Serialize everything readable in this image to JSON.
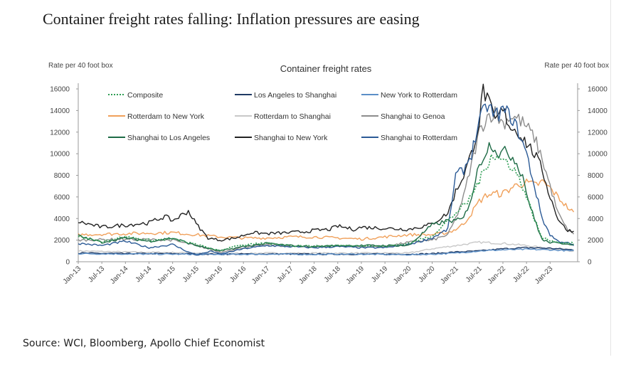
{
  "headline": "Container freight rates falling: Inflation pressures are easing",
  "source": "Source: WCI, Bloomberg, Apollo Chief Economist",
  "chart_data": {
    "type": "line",
    "title": "Container freight rates",
    "ylabel_left": "Rate per 40 foot box",
    "ylabel_right": "Rate per 40 foot box",
    "ylim": [
      0,
      16000
    ],
    "yticks": [
      0,
      2000,
      4000,
      6000,
      8000,
      10000,
      12000,
      14000,
      16000
    ],
    "ytick_labels": [
      "0",
      "2000",
      "4000",
      "6000",
      "8000",
      "10000",
      "12000",
      "14000",
      "16000"
    ],
    "xlim": [
      0,
      127
    ],
    "x_tick_labels": [
      "Jan-13",
      "Jul-13",
      "Jan-14",
      "Jul-14",
      "Jan-15",
      "Jul-15",
      "Jan-16",
      "Jul-16",
      "Jan-17",
      "Jul-17",
      "Jan-18",
      "Jul-18",
      "Jan-19",
      "Jul-19",
      "Jan-20",
      "Jul-20",
      "Jan-21",
      "Jul-21",
      "Jan-22",
      "Jul-22",
      "Jan-23"
    ],
    "x_tick_months": [
      0,
      6,
      12,
      18,
      24,
      30,
      36,
      42,
      48,
      54,
      60,
      66,
      72,
      78,
      84,
      90,
      96,
      102,
      108,
      114,
      120
    ],
    "x_month_index_note": "x values are months since Jan-13",
    "series": [
      {
        "name": "Composite",
        "color": "#2e9e54",
        "dash": "2,2",
        "points": [
          [
            0,
            2300
          ],
          [
            6,
            1900
          ],
          [
            12,
            2300
          ],
          [
            18,
            2000
          ],
          [
            24,
            2100
          ],
          [
            30,
            1600
          ],
          [
            36,
            1000
          ],
          [
            40,
            1500
          ],
          [
            48,
            1700
          ],
          [
            54,
            1500
          ],
          [
            60,
            1450
          ],
          [
            66,
            1500
          ],
          [
            72,
            1500
          ],
          [
            78,
            1400
          ],
          [
            84,
            1700
          ],
          [
            90,
            2400
          ],
          [
            96,
            4500
          ],
          [
            99,
            5500
          ],
          [
            102,
            7500
          ],
          [
            104,
            9000
          ],
          [
            105,
            10000
          ],
          [
            107,
            9500
          ],
          [
            109,
            9300
          ],
          [
            111,
            8500
          ],
          [
            113,
            7000
          ],
          [
            115,
            5000
          ],
          [
            117,
            3000
          ],
          [
            118,
            2200
          ],
          [
            120,
            2000
          ],
          [
            122,
            1800
          ],
          [
            124,
            1750
          ],
          [
            126,
            1700
          ]
        ]
      },
      {
        "name": "Los Angeles to Shanghai",
        "color": "#1f3a64",
        "dash": "",
        "points": [
          [
            0,
            800
          ],
          [
            12,
            750
          ],
          [
            24,
            750
          ],
          [
            36,
            700
          ],
          [
            48,
            720
          ],
          [
            60,
            700
          ],
          [
            72,
            700
          ],
          [
            84,
            700
          ],
          [
            90,
            750
          ],
          [
            96,
            900
          ],
          [
            102,
            1000
          ],
          [
            108,
            1200
          ],
          [
            114,
            1300
          ],
          [
            120,
            1250
          ],
          [
            126,
            1100
          ]
        ]
      },
      {
        "name": "New York to Rotterdam",
        "color": "#5b8fc7",
        "dash": "",
        "points": [
          [
            0,
            750
          ],
          [
            12,
            720
          ],
          [
            24,
            700
          ],
          [
            36,
            680
          ],
          [
            48,
            700
          ],
          [
            60,
            680
          ],
          [
            72,
            700
          ],
          [
            84,
            650
          ],
          [
            90,
            700
          ],
          [
            96,
            800
          ],
          [
            102,
            1000
          ],
          [
            108,
            1100
          ],
          [
            114,
            1150
          ],
          [
            120,
            1100
          ],
          [
            126,
            1000
          ]
        ]
      },
      {
        "name": "Rotterdam to New York",
        "color": "#f0a05a",
        "dash": "",
        "points": [
          [
            0,
            2500
          ],
          [
            12,
            2600
          ],
          [
            24,
            2700
          ],
          [
            30,
            2500
          ],
          [
            36,
            2300
          ],
          [
            42,
            2200
          ],
          [
            48,
            2200
          ],
          [
            54,
            2300
          ],
          [
            60,
            2300
          ],
          [
            66,
            2200
          ],
          [
            72,
            2100
          ],
          [
            78,
            2300
          ],
          [
            84,
            2500
          ],
          [
            90,
            2500
          ],
          [
            94,
            2700
          ],
          [
            96,
            3000
          ],
          [
            98,
            3500
          ],
          [
            100,
            4500
          ],
          [
            102,
            5600
          ],
          [
            104,
            6200
          ],
          [
            106,
            6300
          ],
          [
            108,
            6300
          ],
          [
            110,
            6800
          ],
          [
            112,
            7200
          ],
          [
            114,
            7300
          ],
          [
            116,
            7100
          ],
          [
            117,
            7200
          ],
          [
            118,
            7400
          ],
          [
            120,
            6800
          ],
          [
            122,
            6000
          ],
          [
            124,
            5200
          ],
          [
            126,
            4500
          ]
        ]
      },
      {
        "name": "Rotterdam to Shanghai",
        "color": "#c8c8c8",
        "dash": "",
        "points": [
          [
            0,
            1000
          ],
          [
            12,
            900
          ],
          [
            24,
            850
          ],
          [
            36,
            750
          ],
          [
            48,
            800
          ],
          [
            60,
            800
          ],
          [
            72,
            800
          ],
          [
            84,
            800
          ],
          [
            90,
            1200
          ],
          [
            96,
            1500
          ],
          [
            102,
            1800
          ],
          [
            108,
            1700
          ],
          [
            114,
            1500
          ],
          [
            120,
            1200
          ],
          [
            126,
            1000
          ]
        ]
      },
      {
        "name": "Shanghai to Genoa",
        "color": "#8c8c8c",
        "dash": "",
        "points": [
          [
            0,
            2000
          ],
          [
            12,
            2100
          ],
          [
            24,
            2000
          ],
          [
            30,
            1500
          ],
          [
            36,
            900
          ],
          [
            42,
            1300
          ],
          [
            48,
            1600
          ],
          [
            54,
            1400
          ],
          [
            60,
            1400
          ],
          [
            66,
            1500
          ],
          [
            72,
            1400
          ],
          [
            78,
            1400
          ],
          [
            84,
            1800
          ],
          [
            90,
            2000
          ],
          [
            94,
            2500
          ],
          [
            96,
            4000
          ],
          [
            98,
            6000
          ],
          [
            100,
            9000
          ],
          [
            102,
            12000
          ],
          [
            104,
            13500
          ],
          [
            106,
            13800
          ],
          [
            108,
            12800
          ],
          [
            110,
            13500
          ],
          [
            112,
            13200
          ],
          [
            114,
            12500
          ],
          [
            116,
            11500
          ],
          [
            118,
            9500
          ],
          [
            120,
            7000
          ],
          [
            122,
            4500
          ],
          [
            124,
            3200
          ],
          [
            126,
            2500
          ]
        ]
      },
      {
        "name": "Shanghai to Los Angeles",
        "color": "#1e6b46",
        "dash": "",
        "points": [
          [
            0,
            2400
          ],
          [
            6,
            1800
          ],
          [
            12,
            2200
          ],
          [
            18,
            1900
          ],
          [
            24,
            2200
          ],
          [
            30,
            1500
          ],
          [
            36,
            1000
          ],
          [
            42,
            1400
          ],
          [
            48,
            1700
          ],
          [
            54,
            1500
          ],
          [
            60,
            1400
          ],
          [
            66,
            1500
          ],
          [
            72,
            1500
          ],
          [
            78,
            1500
          ],
          [
            84,
            1500
          ],
          [
            90,
            3400
          ],
          [
            94,
            3800
          ],
          [
            96,
            3800
          ],
          [
            98,
            4000
          ],
          [
            100,
            6000
          ],
          [
            102,
            9000
          ],
          [
            104,
            10500
          ],
          [
            105,
            11000
          ],
          [
            107,
            10000
          ],
          [
            109,
            10200
          ],
          [
            111,
            9500
          ],
          [
            113,
            8000
          ],
          [
            115,
            5000
          ],
          [
            117,
            3000
          ],
          [
            118,
            2000
          ],
          [
            120,
            1800
          ],
          [
            122,
            1700
          ],
          [
            124,
            1700
          ],
          [
            126,
            1600
          ]
        ]
      },
      {
        "name": "Shanghai to New York",
        "color": "#222222",
        "dash": "",
        "points": [
          [
            0,
            3700
          ],
          [
            6,
            3200
          ],
          [
            12,
            3400
          ],
          [
            18,
            3600
          ],
          [
            22,
            4200
          ],
          [
            24,
            3800
          ],
          [
            28,
            4700
          ],
          [
            30,
            3500
          ],
          [
            33,
            2200
          ],
          [
            36,
            2000
          ],
          [
            40,
            2200
          ],
          [
            44,
            2700
          ],
          [
            48,
            2600
          ],
          [
            54,
            2700
          ],
          [
            58,
            2800
          ],
          [
            60,
            2900
          ],
          [
            64,
            3000
          ],
          [
            66,
            3300
          ],
          [
            70,
            3000
          ],
          [
            72,
            3200
          ],
          [
            78,
            3100
          ],
          [
            84,
            3000
          ],
          [
            88,
            3300
          ],
          [
            90,
            3500
          ],
          [
            94,
            4500
          ],
          [
            96,
            6500
          ],
          [
            98,
            8000
          ],
          [
            100,
            10000
          ],
          [
            102,
            13000
          ],
          [
            103,
            16000
          ],
          [
            104,
            15000
          ],
          [
            106,
            13000
          ],
          [
            108,
            14000
          ],
          [
            110,
            12500
          ],
          [
            112,
            12000
          ],
          [
            114,
            11000
          ],
          [
            116,
            10000
          ],
          [
            118,
            8500
          ],
          [
            120,
            6000
          ],
          [
            122,
            4000
          ],
          [
            124,
            3000
          ],
          [
            126,
            2800
          ]
        ]
      },
      {
        "name": "Shanghai to Rotterdam",
        "color": "#2b5a96",
        "dash": "",
        "points": [
          [
            0,
            1700
          ],
          [
            6,
            1500
          ],
          [
            12,
            1900
          ],
          [
            18,
            1300
          ],
          [
            24,
            1600
          ],
          [
            28,
            900
          ],
          [
            30,
            600
          ],
          [
            34,
            1000
          ],
          [
            36,
            700
          ],
          [
            42,
            1200
          ],
          [
            48,
            1500
          ],
          [
            54,
            1400
          ],
          [
            60,
            1300
          ],
          [
            66,
            1400
          ],
          [
            72,
            1300
          ],
          [
            78,
            1300
          ],
          [
            84,
            1600
          ],
          [
            90,
            2200
          ],
          [
            94,
            3000
          ],
          [
            96,
            8000
          ],
          [
            98,
            8500
          ],
          [
            100,
            10000
          ],
          [
            102,
            13000
          ],
          [
            104,
            14500
          ],
          [
            106,
            13500
          ],
          [
            108,
            14000
          ],
          [
            110,
            13500
          ],
          [
            112,
            12000
          ],
          [
            114,
            10000
          ],
          [
            116,
            7000
          ],
          [
            118,
            4000
          ],
          [
            120,
            2500
          ],
          [
            122,
            1900
          ],
          [
            124,
            1800
          ],
          [
            126,
            1500
          ]
        ]
      }
    ]
  }
}
